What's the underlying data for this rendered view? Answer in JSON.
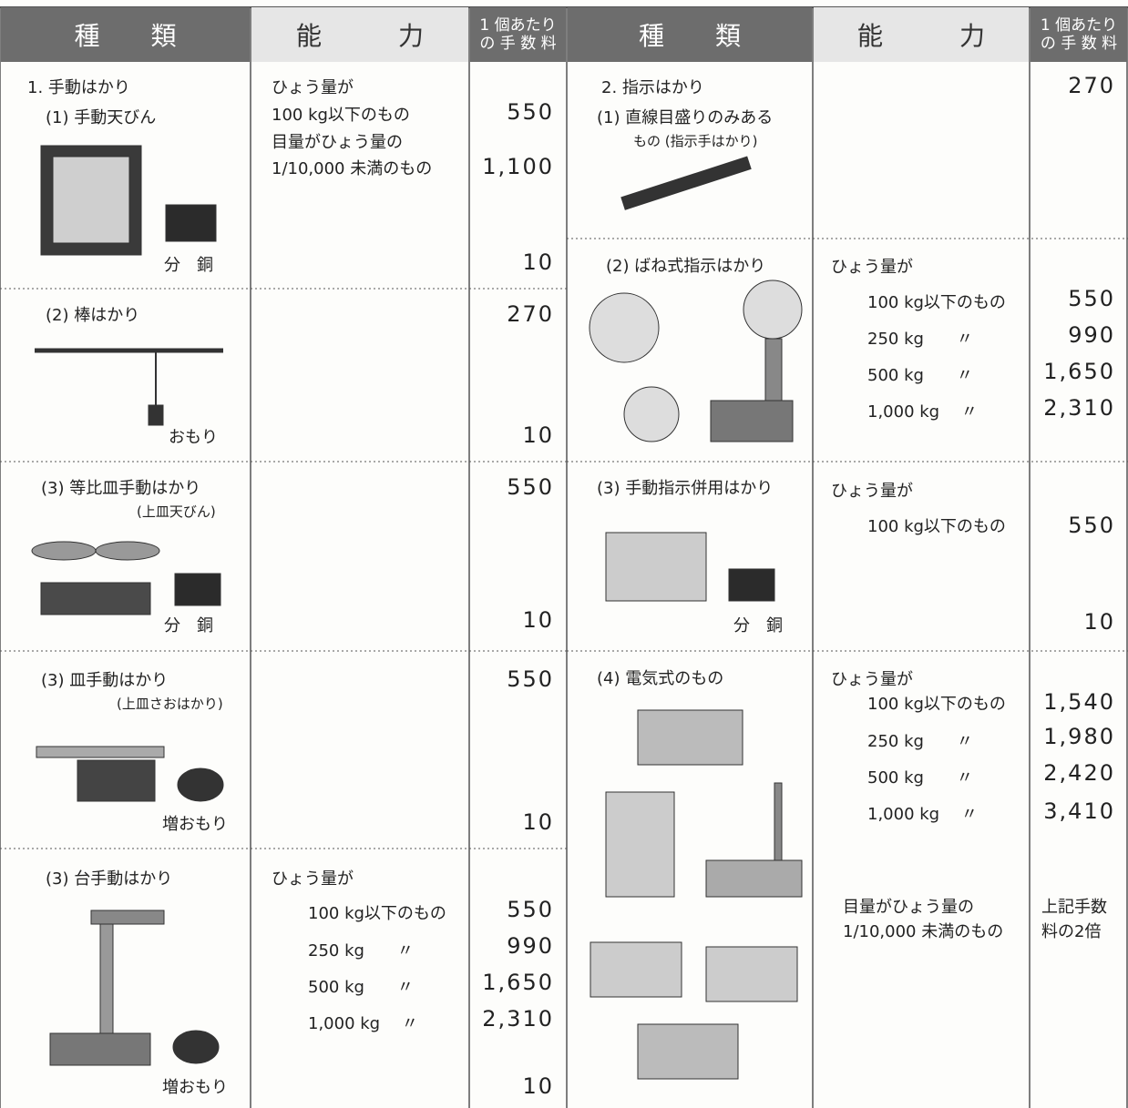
{
  "header": {
    "kind": "種　　類",
    "capacity": "能　　　力",
    "fee": [
      "1 個あたり",
      "の 手 数 料"
    ]
  },
  "left": [
    {
      "heading": "1. 手動はかり",
      "name": "(1) 手動天びん",
      "capacity": [
        "ひょう量が",
        "100 kg以下のもの",
        "目量がひょう量の",
        "1/10,000 未満のもの"
      ],
      "fees": [
        "550",
        "1,100"
      ],
      "min_fee": "10",
      "labels": [
        "分　銅"
      ]
    },
    {
      "name": "(2) 棒はかり",
      "fees": [
        "270"
      ],
      "min_fee": "10",
      "labels": [
        "おもり"
      ]
    },
    {
      "name": "(3) 等比皿手動はかり",
      "sub": "(上皿天びん)",
      "fees": [
        "550"
      ],
      "min_fee": "10",
      "labels": [
        "分　銅"
      ]
    },
    {
      "name": "(3) 皿手動はかり",
      "sub": "(上皿さおはかり)",
      "fees": [
        "550"
      ],
      "min_fee": "10",
      "labels": [
        "増おもり"
      ]
    },
    {
      "name": "(3) 台手動はかり",
      "capacity": [
        "ひょう量が",
        "100 kg以下のもの",
        "250 kg　　〃",
        "500 kg　　〃",
        "1,000 kg　 〃"
      ],
      "fees": [
        "550",
        "990",
        "1,650",
        "2,310"
      ],
      "min_fee": "10",
      "labels": [
        "増おもり"
      ]
    }
  ],
  "right": [
    {
      "heading": "2. 指示はかり",
      "name": "(1) 直線目盛りのみある",
      "sub": "もの (指示手はかり)",
      "fees": [
        "270"
      ]
    },
    {
      "name": "(2) ばね式指示はかり",
      "capacity": [
        "ひょう量が",
        "100 kg以下のもの",
        "250 kg　　〃",
        "500 kg　　〃",
        "1,000 kg　 〃"
      ],
      "fees": [
        "550",
        "990",
        "1,650",
        "2,310"
      ]
    },
    {
      "name": "(3) 手動指示併用はかり",
      "capacity": [
        "ひょう量が",
        "100 kg以下のもの"
      ],
      "fees": [
        "550"
      ],
      "min_fee": "10",
      "labels": [
        "分　銅"
      ]
    },
    {
      "name": "(4) 電気式のもの",
      "capacity": [
        "ひょう量が",
        "100 kg以下のもの",
        "250 kg　　〃",
        "500 kg　　〃",
        "1,000 kg　 〃"
      ],
      "fees": [
        "1,540",
        "1,980",
        "2,420",
        "3,410"
      ],
      "note": [
        "目量がひょう量の",
        "1/10,000 未満のもの"
      ],
      "note_fee": [
        "上記手数",
        "料の2倍"
      ]
    }
  ]
}
